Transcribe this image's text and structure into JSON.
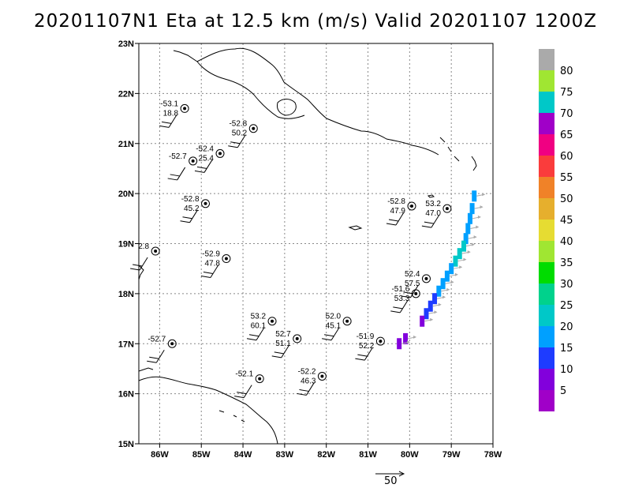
{
  "title": "20201107N1 Eta at 12.5 km (m/s) Valid 20201107 1200Z",
  "chart_data": {
    "type": "map",
    "xlim": [
      -86.5,
      -78
    ],
    "ylim": [
      15,
      23
    ],
    "lon_ticks": [
      {
        "v": -86,
        "t": "86W"
      },
      {
        "v": -85,
        "t": "85W"
      },
      {
        "v": -84,
        "t": "84W"
      },
      {
        "v": -83,
        "t": "83W"
      },
      {
        "v": -82,
        "t": "82W"
      },
      {
        "v": -81,
        "t": "81W"
      },
      {
        "v": -80,
        "t": "80W"
      },
      {
        "v": -79,
        "t": "79W"
      },
      {
        "v": -78,
        "t": "78W"
      }
    ],
    "lat_ticks": [
      {
        "v": 15,
        "t": "15N"
      },
      {
        "v": 16,
        "t": "16N"
      },
      {
        "v": 17,
        "t": "17N"
      },
      {
        "v": 18,
        "t": "18N"
      },
      {
        "v": 19,
        "t": "19N"
      },
      {
        "v": 20,
        "t": "20N"
      },
      {
        "v": 21,
        "t": "21N"
      },
      {
        "v": 22,
        "t": "22N"
      },
      {
        "v": 23,
        "t": "23N"
      }
    ],
    "grid": true,
    "stations": [
      {
        "lon": -85.4,
        "lat": 21.7,
        "t1": "-53.1",
        "t2": "18.8"
      },
      {
        "lon": -83.75,
        "lat": 21.3,
        "t1": "-52.8",
        "t2": "50.2"
      },
      {
        "lon": -84.55,
        "lat": 20.8,
        "t1": "-52.4",
        "t2": "25.4"
      },
      {
        "lon": -85.2,
        "lat": 20.65,
        "t1": "-52.7",
        "t2": ""
      },
      {
        "lon": -84.9,
        "lat": 19.8,
        "t1": "-52.8",
        "t2": "45.2"
      },
      {
        "lon": -86.1,
        "lat": 18.85,
        "t1": "2.8",
        "t2": ""
      },
      {
        "lon": -84.4,
        "lat": 18.7,
        "t1": "-52.9",
        "t2": "47.8"
      },
      {
        "lon": -79.95,
        "lat": 19.75,
        "t1": "-52.8",
        "t2": "47.9"
      },
      {
        "lon": -79.1,
        "lat": 19.7,
        "t1": "53.2",
        "t2": "47.0"
      },
      {
        "lon": -79.6,
        "lat": 18.3,
        "t1": "52.4",
        "t2": "57.5"
      },
      {
        "lon": -79.85,
        "lat": 18.0,
        "t1": "-51.6",
        "t2": "53.3"
      },
      {
        "lon": -83.3,
        "lat": 17.45,
        "t1": "53.2",
        "t2": "60.1"
      },
      {
        "lon": -82.7,
        "lat": 17.1,
        "t1": "52.7",
        "t2": "51.1"
      },
      {
        "lon": -81.5,
        "lat": 17.45,
        "t1": "52.0",
        "t2": "45.1"
      },
      {
        "lon": -80.7,
        "lat": 17.05,
        "t1": "-51.9",
        "t2": "52.2"
      },
      {
        "lon": -85.7,
        "lat": 17.0,
        "t1": "-52.7",
        "t2": ""
      },
      {
        "lon": -83.6,
        "lat": 16.3,
        "t1": "-52.1",
        "t2": ""
      },
      {
        "lon": -82.1,
        "lat": 16.35,
        "t1": "-52.2",
        "t2": "46.3"
      }
    ],
    "colorbar": {
      "labels": [
        "5",
        "10",
        "15",
        "20",
        "25",
        "30",
        "35",
        "40",
        "45",
        "50",
        "55",
        "60",
        "65",
        "70",
        "75",
        "80"
      ],
      "colors": [
        "#a000c8",
        "#8200dc",
        "#1e3cff",
        "#00a0ff",
        "#00c8c8",
        "#00d28c",
        "#00dc00",
        "#a0e632",
        "#e6dc32",
        "#e6af2d",
        "#f08228",
        "#fa3c3c",
        "#f00082",
        "#a000c8",
        "#00c8c8",
        "#a0e632",
        "#aaaaaa"
      ]
    },
    "wind_swath": [
      {
        "lon": -78.45,
        "lat": 19.95,
        "v": 17
      },
      {
        "lon": -78.5,
        "lat": 19.7,
        "v": 18
      },
      {
        "lon": -78.55,
        "lat": 19.5,
        "v": 19
      },
      {
        "lon": -78.6,
        "lat": 19.3,
        "v": 18
      },
      {
        "lon": -78.65,
        "lat": 19.1,
        "v": 19
      },
      {
        "lon": -78.7,
        "lat": 18.95,
        "v": 20
      },
      {
        "lon": -78.8,
        "lat": 18.8,
        "v": 21
      },
      {
        "lon": -78.9,
        "lat": 18.65,
        "v": 20
      },
      {
        "lon": -79.0,
        "lat": 18.5,
        "v": 19
      },
      {
        "lon": -79.1,
        "lat": 18.35,
        "v": 18
      },
      {
        "lon": -79.2,
        "lat": 18.2,
        "v": 17
      },
      {
        "lon": -79.3,
        "lat": 18.05,
        "v": 16
      },
      {
        "lon": -79.4,
        "lat": 17.9,
        "v": 14
      },
      {
        "lon": -79.5,
        "lat": 17.75,
        "v": 12
      },
      {
        "lon": -79.6,
        "lat": 17.6,
        "v": 11
      },
      {
        "lon": -79.7,
        "lat": 17.45,
        "v": 9
      },
      {
        "lon": -80.1,
        "lat": 17.1,
        "v": 7
      },
      {
        "lon": -80.25,
        "lat": 17.0,
        "v": 8
      }
    ],
    "reference_vector": "50"
  }
}
